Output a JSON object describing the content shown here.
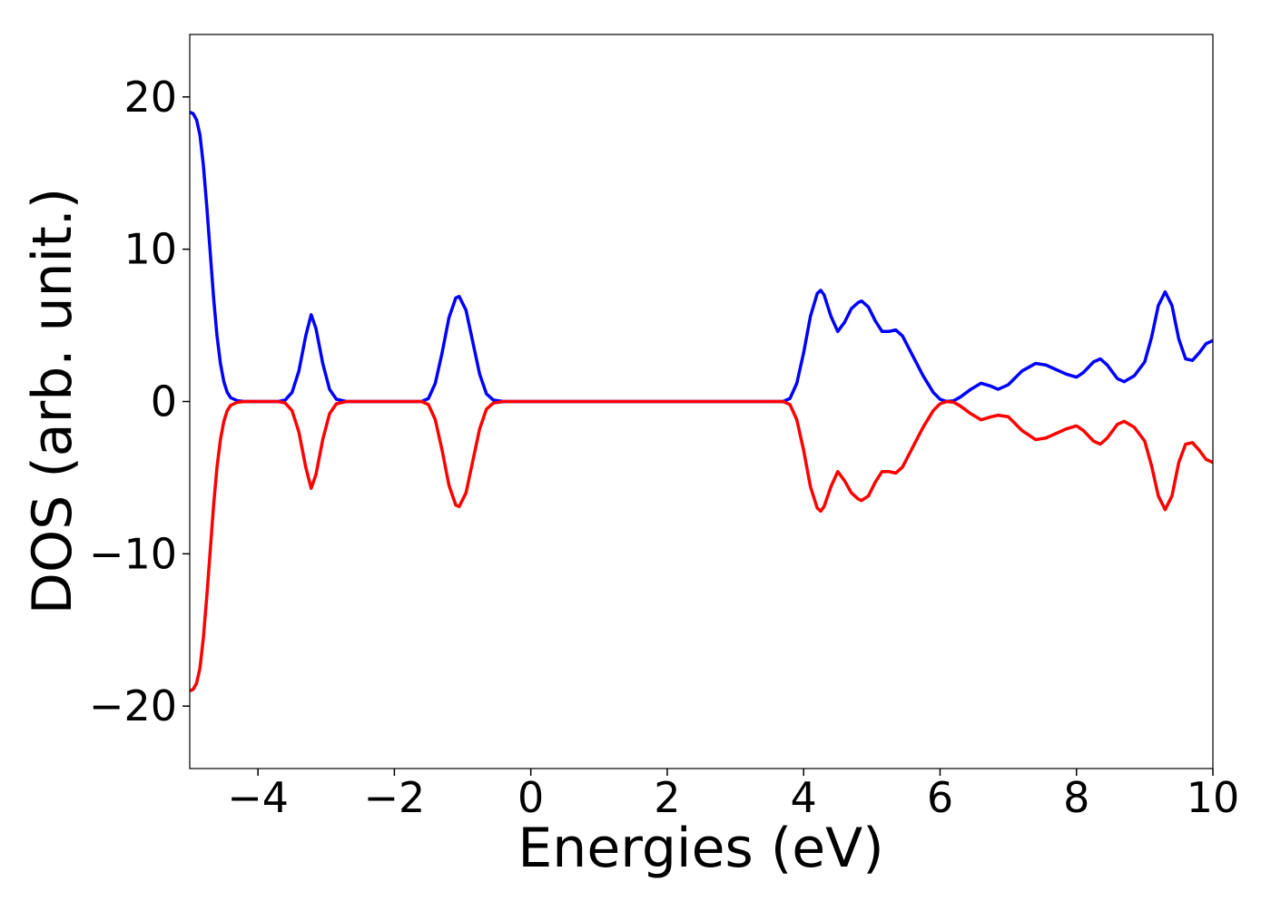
{
  "chart_data": {
    "type": "line",
    "xlabel": "Energies (eV)",
    "ylabel": "DOS (arb. unit.)",
    "xlim": [
      -5,
      10
    ],
    "ylim": [
      -24.1,
      24.1
    ],
    "xticks": [
      {
        "value": -4,
        "label": "−4"
      },
      {
        "value": -2,
        "label": "−2"
      },
      0,
      2,
      4,
      6,
      8,
      10
    ],
    "yticks": [
      {
        "value": -20,
        "label": "−20"
      },
      {
        "value": -10,
        "label": "−10"
      },
      0,
      10,
      20
    ],
    "grid": false,
    "x": [
      -5,
      -4.95,
      -4.9,
      -4.85,
      -4.8,
      -4.75,
      -4.7,
      -4.65,
      -4.6,
      -4.55,
      -4.5,
      -4.45,
      -4.4,
      -4.3,
      -4.2,
      -3.7,
      -3.6,
      -3.5,
      -3.4,
      -3.3,
      -3.22,
      -3.15,
      -3.05,
      -2.95,
      -2.85,
      -2.7,
      -1.6,
      -1.5,
      -1.4,
      -1.3,
      -1.2,
      -1.1,
      -1.05,
      -0.95,
      -0.85,
      -0.75,
      -0.65,
      -0.55,
      -0.4,
      3.7,
      3.8,
      3.9,
      4.0,
      4.1,
      4.2,
      4.25,
      4.3,
      4.4,
      4.5,
      4.6,
      4.7,
      4.8,
      4.85,
      4.95,
      5.05,
      5.15,
      5.25,
      5.35,
      5.45,
      5.6,
      5.75,
      5.9,
      6.0,
      6.1,
      6.2,
      6.3,
      6.45,
      6.6,
      6.75,
      6.85,
      7.0,
      7.2,
      7.4,
      7.55,
      7.7,
      7.85,
      8.0,
      8.1,
      8.25,
      8.35,
      8.45,
      8.6,
      8.7,
      8.85,
      9.0,
      9.1,
      9.2,
      9.3,
      9.4,
      9.5,
      9.6,
      9.7,
      9.8,
      9.9,
      10
    ],
    "series": [
      {
        "color": "#0000ff",
        "values": [
          19.0,
          18.9,
          18.5,
          17.5,
          15.5,
          12.8,
          9.8,
          6.8,
          4.3,
          2.5,
          1.3,
          0.6,
          0.25,
          0.05,
          0,
          0,
          0.1,
          0.6,
          2.0,
          4.3,
          5.7,
          4.8,
          2.5,
          0.8,
          0.15,
          0,
          0,
          0.2,
          1.2,
          3.2,
          5.5,
          6.8,
          6.9,
          6.0,
          3.9,
          1.8,
          0.5,
          0.1,
          0,
          0,
          0.2,
          1.2,
          3.2,
          5.6,
          7.1,
          7.3,
          7.0,
          5.6,
          4.6,
          5.2,
          6.1,
          6.5,
          6.6,
          6.2,
          5.3,
          4.6,
          4.6,
          4.7,
          4.3,
          3.0,
          1.7,
          0.6,
          0.15,
          0,
          0.05,
          0.3,
          0.8,
          1.2,
          1.0,
          0.8,
          1.1,
          2.0,
          2.5,
          2.4,
          2.1,
          1.8,
          1.6,
          1.9,
          2.6,
          2.8,
          2.4,
          1.5,
          1.3,
          1.7,
          2.6,
          4.2,
          6.3,
          7.2,
          6.3,
          4.1,
          2.8,
          2.7,
          3.2,
          3.8,
          4.0
        ]
      },
      {
        "color": "#ff0000",
        "values": [
          -19.0,
          -18.9,
          -18.5,
          -17.5,
          -15.5,
          -12.8,
          -9.8,
          -6.8,
          -4.3,
          -2.5,
          -1.3,
          -0.6,
          -0.25,
          -0.05,
          0,
          0,
          -0.1,
          -0.6,
          -2.0,
          -4.3,
          -5.7,
          -4.8,
          -2.5,
          -0.8,
          -0.15,
          0,
          0,
          -0.2,
          -1.2,
          -3.2,
          -5.5,
          -6.8,
          -6.9,
          -6.0,
          -3.9,
          -1.8,
          -0.5,
          -0.1,
          0,
          0,
          -0.2,
          -1.2,
          -3.2,
          -5.6,
          -7.0,
          -7.2,
          -6.9,
          -5.6,
          -4.6,
          -5.2,
          -6.0,
          -6.4,
          -6.5,
          -6.2,
          -5.3,
          -4.6,
          -4.6,
          -4.7,
          -4.3,
          -3.0,
          -1.7,
          -0.6,
          -0.15,
          0,
          -0.05,
          -0.3,
          -0.8,
          -1.2,
          -1.0,
          -0.9,
          -1.0,
          -1.9,
          -2.5,
          -2.4,
          -2.1,
          -1.8,
          -1.6,
          -1.9,
          -2.6,
          -2.8,
          -2.4,
          -1.5,
          -1.3,
          -1.7,
          -2.6,
          -4.2,
          -6.2,
          -7.1,
          -6.2,
          -4.0,
          -2.8,
          -2.7,
          -3.2,
          -3.8,
          -4.0
        ]
      }
    ]
  }
}
